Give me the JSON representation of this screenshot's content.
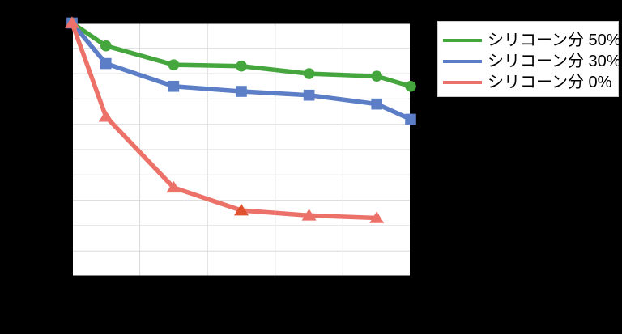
{
  "chart_data": {
    "type": "line",
    "title": "",
    "grid": true,
    "legend_position": "top-right",
    "x_axis": {
      "min": 0,
      "max": 10,
      "grid_step": 2,
      "tick_labels_visible": false
    },
    "y_axis": {
      "min": 0,
      "max": 100,
      "grid_step": 10,
      "tick_labels_visible": false
    },
    "series": [
      {
        "name": "シリコーン分 50%",
        "color": "#45a63e",
        "marker": "circle",
        "x": [
          0,
          1,
          3,
          5,
          7,
          9,
          10
        ],
        "y": [
          100,
          91,
          83.5,
          83,
          80,
          79,
          75
        ]
      },
      {
        "name": "シリコーン分 30%",
        "color": "#5b7ec7",
        "marker": "square",
        "x": [
          0,
          1,
          3,
          5,
          7,
          9,
          10
        ],
        "y": [
          100,
          84,
          75,
          73,
          71.5,
          68,
          62
        ]
      },
      {
        "name": "シリコーン分 0%",
        "color": "#ec7168",
        "marker": "triangle",
        "x": [
          0,
          1,
          3,
          5,
          7,
          9
        ],
        "y": [
          100,
          63,
          35,
          26,
          24,
          23
        ],
        "marker_color_overrides": {
          "3": "#e0512e"
        }
      }
    ]
  },
  "colors": {
    "page_background": "#000000",
    "plot_background": "#ffffff",
    "gridline": "#d9d9d9",
    "plot_border": "#000000",
    "legend_background": "#ffffff",
    "legend_border": "#cccccc",
    "legend_text": "#000000"
  }
}
